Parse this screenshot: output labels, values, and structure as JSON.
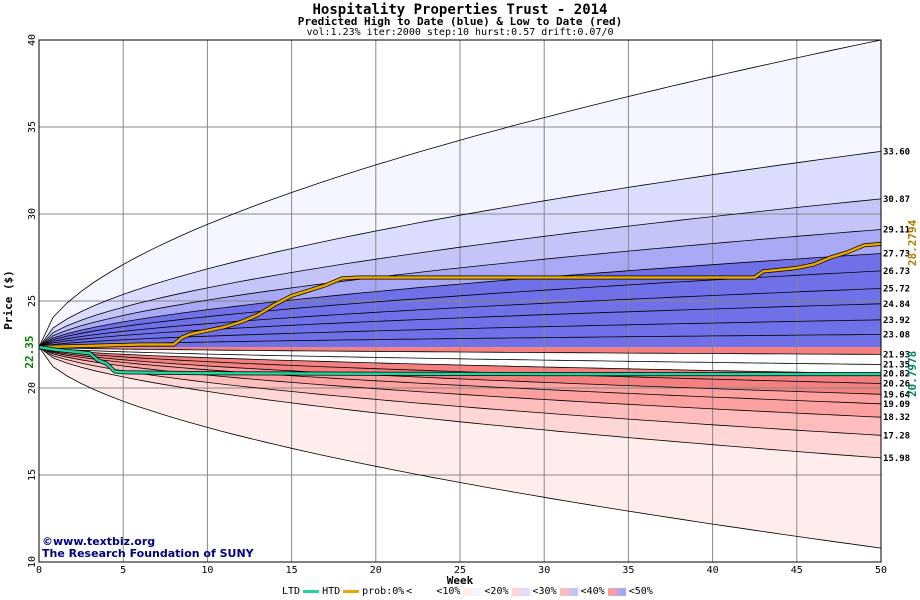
{
  "header": {
    "title": "Hospitality Properties Trust - 2014",
    "subtitle": "Predicted High to Date (blue) &  Low to Date (red)",
    "params": "vol:1.23% iter:2000 step:10 hurst:0.57 drift:0.07/0"
  },
  "credits": {
    "line1": "www.textbiz.org",
    "line2": "The Research Foundation of SUNY"
  },
  "legend": {
    "ltd": "LTD",
    "htd": "HTD",
    "prob": "prob:0%",
    "b10": "<10%",
    "b20": "<20%",
    "b30": "<30%",
    "b40": "<40%",
    "b50": "<50%",
    "lt": "<"
  },
  "colors": {
    "background": "#ffffff",
    "ltd_line": "#20d4a0",
    "htd_line": "#e8a800",
    "start_label": "#008000",
    "htd_label": "#b07800",
    "ltd_label": "#008060"
  },
  "chart_data": {
    "type": "area",
    "title": "Hospitality Properties Trust - 2014",
    "xlabel": "Week",
    "ylabel": "Price ($)",
    "xlim": [
      0,
      50
    ],
    "ylim": [
      10,
      40
    ],
    "x_ticks": [
      0,
      5,
      10,
      15,
      20,
      25,
      30,
      35,
      40,
      45,
      50
    ],
    "y_ticks": [
      10,
      15,
      20,
      25,
      30,
      35,
      40
    ],
    "grid": true,
    "start_price": 22.35,
    "start_label": "22.35",
    "high_bands": [
      {
        "level": "<10%",
        "color": "#f5f5ff",
        "end": 40.0
      },
      {
        "level": "<20%",
        "color": "#dcdcff",
        "end": 33.6
      },
      {
        "level": "<30%",
        "color": "#c4c4f8",
        "end": 30.87
      },
      {
        "level": "<40%",
        "color": "#a8a8f4",
        "end": 29.11
      },
      {
        "level": "<50%",
        "color": "#8a8aec",
        "end": 27.73
      }
    ],
    "low_bands": [
      {
        "level": "<10%",
        "color": "#ffecec",
        "end": 10.8
      },
      {
        "level": "<20%",
        "color": "#ffd6d6",
        "end": 15.98
      },
      {
        "level": "<30%",
        "color": "#ffbcbc",
        "end": 17.28
      },
      {
        "level": "<40%",
        "color": "#fca0a0",
        "end": 18.32
      },
      {
        "level": "<50%",
        "color": "#f58080",
        "end": 19.64
      }
    ],
    "high_quantiles": [
      {
        "label": "33.60",
        "end": 33.6
      },
      {
        "label": "30.87",
        "end": 30.87
      },
      {
        "label": "29.11",
        "end": 29.11
      },
      {
        "label": "27.73",
        "end": 27.73
      },
      {
        "label": "26.73",
        "end": 26.73
      },
      {
        "label": "25.72",
        "end": 25.72
      },
      {
        "label": "24.84",
        "end": 24.84
      },
      {
        "label": "23.92",
        "end": 23.92
      },
      {
        "label": "23.08",
        "end": 23.08
      }
    ],
    "mid_quantiles": [
      {
        "label": "21.93",
        "end": 21.93
      },
      {
        "label": "21.35",
        "end": 21.35
      },
      {
        "label": "20.82",
        "end": 20.82
      }
    ],
    "low_quantiles": [
      {
        "label": "20.26",
        "end": 20.26
      },
      {
        "label": "19.64",
        "end": 19.64
      },
      {
        "label": "19.09",
        "end": 19.09
      },
      {
        "label": "18.32",
        "end": 18.32
      },
      {
        "label": "17.28",
        "end": 17.28
      },
      {
        "label": "15.98",
        "end": 15.98
      }
    ],
    "outer_high_end": 40.0,
    "outer_low_end": 10.8,
    "htd": {
      "name": "HTD",
      "end_label": "28.2794",
      "x": [
        0,
        2,
        4,
        6,
        8,
        8.5,
        9,
        10,
        11,
        12,
        13,
        14,
        15,
        16,
        17,
        18,
        19,
        20,
        25,
        30,
        35,
        40,
        42.5,
        43,
        44,
        45,
        46,
        47,
        48,
        49,
        50
      ],
      "y": [
        22.35,
        22.4,
        22.45,
        22.5,
        22.5,
        22.9,
        23.1,
        23.3,
        23.5,
        23.8,
        24.2,
        24.8,
        25.3,
        25.6,
        25.9,
        26.3,
        26.35,
        26.35,
        26.35,
        26.35,
        26.35,
        26.35,
        26.35,
        26.7,
        26.8,
        26.9,
        27.1,
        27.5,
        27.8,
        28.2,
        28.28
      ]
    },
    "ltd": {
      "name": "LTD",
      "end_label": "20.7978",
      "x": [
        0,
        1,
        2,
        3,
        3.5,
        4,
        4.5,
        5,
        10,
        20,
        30,
        40,
        50
      ],
      "y": [
        22.35,
        22.2,
        22.1,
        22.0,
        21.6,
        21.4,
        20.95,
        20.9,
        20.85,
        20.82,
        20.8,
        20.8,
        20.8
      ]
    }
  }
}
